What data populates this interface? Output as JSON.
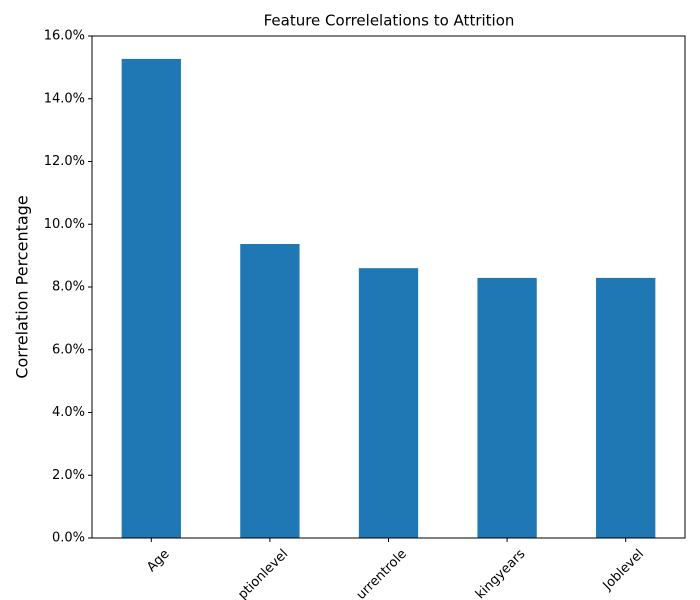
{
  "chart_data": {
    "type": "bar",
    "title": "Feature Correlelations to Attrition",
    "ylabel": "Correlation Percentage",
    "categories": [
      "Age",
      "ptionlevel",
      "urrentrole",
      "kingyears",
      "Joblevel"
    ],
    "values": [
      15.27,
      9.37,
      8.6,
      8.29,
      8.29
    ],
    "color": "#1f77b4",
    "ylim": [
      0,
      16
    ],
    "yticks": [
      {
        "value": 0,
        "label": "0.0%"
      },
      {
        "value": 2,
        "label": "2.0%"
      },
      {
        "value": 4,
        "label": "4.0%"
      },
      {
        "value": 6,
        "label": "6.0%"
      },
      {
        "value": 8,
        "label": "8.0%"
      },
      {
        "value": 10,
        "label": "10.0%"
      },
      {
        "value": 12,
        "label": "12.0%"
      },
      {
        "value": 14,
        "label": "14.0%"
      },
      {
        "value": 16,
        "label": "16.0%"
      }
    ],
    "grid": false
  }
}
